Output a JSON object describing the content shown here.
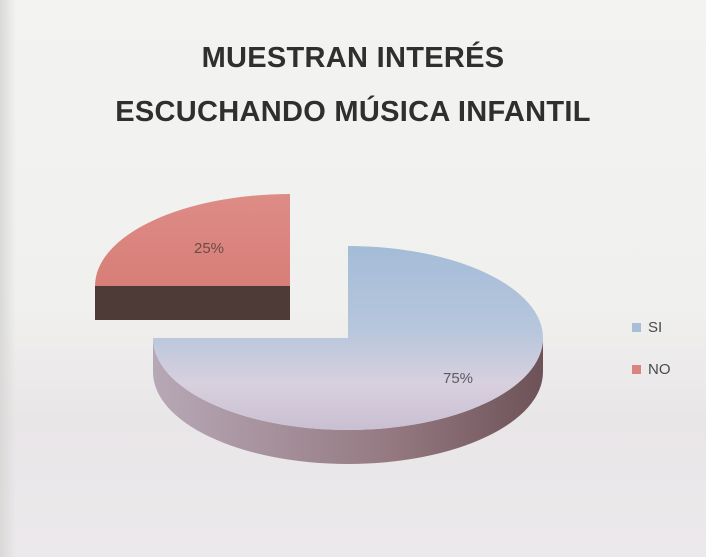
{
  "chart_data": {
    "type": "pie",
    "title_lines": [
      "MUESTRAN  INTERÉS",
      "ESCUCHANDO MÚSICA INFANTIL"
    ],
    "categories": [
      "SI",
      "NO"
    ],
    "values": [
      75,
      25
    ],
    "data_labels": [
      "75%",
      "25%"
    ],
    "colors": [
      "#a9bdd6",
      "#d9857f"
    ],
    "side_colors": [
      "#8b6d74",
      "#4e3b37"
    ],
    "legend_position": "right",
    "exploded_slice": "NO",
    "style": "3d"
  }
}
